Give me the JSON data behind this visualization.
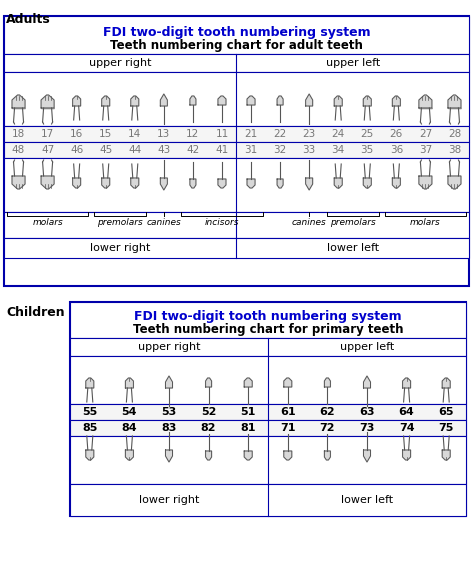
{
  "adults_title1": "FDI two-digit tooth numbering system",
  "adults_title2": "Teeth numbering chart for adult teeth",
  "title_color": "#0000cc",
  "adults_upper_right": "upper right",
  "adults_upper_left": "upper left",
  "adults_lower_right": "lower right",
  "adults_lower_left": "lower left",
  "adults_upper_right_nums": [
    "18",
    "17",
    "16",
    "15",
    "14",
    "13",
    "12",
    "11"
  ],
  "adults_upper_left_nums": [
    "21",
    "22",
    "23",
    "24",
    "25",
    "26",
    "27",
    "28"
  ],
  "adults_lower_right_nums": [
    "48",
    "47",
    "46",
    "45",
    "44",
    "43",
    "42",
    "41"
  ],
  "adults_lower_left_nums": [
    "31",
    "32",
    "33",
    "34",
    "35",
    "36",
    "37",
    "38"
  ],
  "children_title1": "FDI two-digit tooth numbering system",
  "children_title2": "Teeth numbering chart for primary teeth",
  "children_upper_right": "upper right",
  "children_upper_left": "upper left",
  "children_lower_right": "lower right",
  "children_lower_left": "lower left",
  "children_upper_right_nums": [
    "55",
    "54",
    "53",
    "52",
    "51"
  ],
  "children_upper_left_nums": [
    "61",
    "62",
    "63",
    "64",
    "65"
  ],
  "children_lower_right_nums": [
    "85",
    "84",
    "83",
    "82",
    "81"
  ],
  "children_lower_left_nums": [
    "71",
    "72",
    "73",
    "74",
    "75"
  ],
  "border_color": "#0000aa",
  "bg_white": "#ffffff",
  "bg_light": "#f5f5f5",
  "adults_label": "Adults",
  "children_label": "Children",
  "num_color_adult": "#777777",
  "num_color_child": "#000000",
  "tooth_fill": "#d8d8d8",
  "tooth_edge": "#555555",
  "label_molars": "molars",
  "label_premolars": "premolars",
  "label_canines": "canines",
  "label_incisors": "incisors"
}
